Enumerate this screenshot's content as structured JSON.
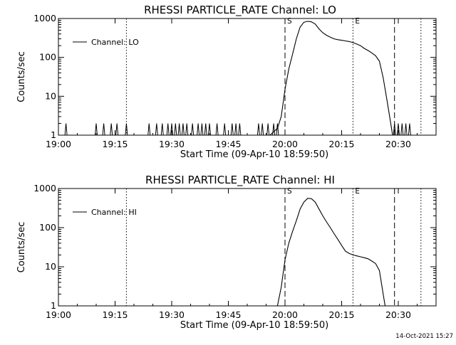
{
  "footer": {
    "timestamp": "14-Oct-2021 15:27"
  },
  "chart_data": [
    {
      "type": "line",
      "title": "RHESSI PARTICLE_RATE Channel: LO",
      "xlabel": "Start Time (09-Apr-10 18:59:50)",
      "ylabel": "Counts/sec",
      "yscale": "log",
      "xlim": [
        "19:00",
        "20:40"
      ],
      "ylim": [
        1,
        1000
      ],
      "x_ticks": [
        "19:00",
        "19:15",
        "19:30",
        "19:45",
        "20:00",
        "20:15",
        "20:30"
      ],
      "y_ticks": [
        "1",
        "10",
        "100",
        "1000"
      ],
      "legend_position": "top-left",
      "grid": false,
      "markers": [
        {
          "label": "S",
          "time": "20:00",
          "style": "dashed"
        },
        {
          "label": "E",
          "time": "20:18",
          "style": "dotted"
        }
      ],
      "vertical_lines": [
        {
          "time": "19:18",
          "style": "dotted"
        },
        {
          "time": "20:29",
          "style": "dashed"
        },
        {
          "time": "20:36",
          "style": "dotted"
        }
      ],
      "series": [
        {
          "name": "Channel: LO",
          "spike_times": [
            "19:02",
            "19:10",
            "19:12",
            "19:14",
            "19:15.5",
            "19:18",
            "19:24",
            "19:26",
            "19:27.5",
            "19:29",
            "19:30",
            "19:31",
            "19:32",
            "19:33",
            "19:34",
            "19:35.5",
            "19:37",
            "19:38",
            "19:39",
            "19:40",
            "19:42",
            "19:44",
            "19:46",
            "19:47",
            "19:48",
            "19:53",
            "19:54",
            "19:55.5",
            "19:57",
            "19:58"
          ],
          "points": [
            [
              "19:56",
              1
            ],
            [
              "19:58",
              1.5
            ],
            [
              "19:59",
              3
            ],
            [
              "20:00",
              15
            ],
            [
              "20:01",
              50
            ],
            [
              "20:02",
              120
            ],
            [
              "20:03",
              300
            ],
            [
              "20:04",
              600
            ],
            [
              "20:05",
              800
            ],
            [
              "20:06",
              850
            ],
            [
              "20:07",
              820
            ],
            [
              "20:08",
              720
            ],
            [
              "20:09",
              540
            ],
            [
              "20:10",
              430
            ],
            [
              "20:11",
              370
            ],
            [
              "20:12",
              330
            ],
            [
              "20:13",
              300
            ],
            [
              "20:14",
              285
            ],
            [
              "20:15",
              275
            ],
            [
              "20:16",
              265
            ],
            [
              "20:17",
              255
            ],
            [
              "20:18",
              240
            ],
            [
              "20:19",
              220
            ],
            [
              "20:20",
              200
            ],
            [
              "20:21",
              170
            ],
            [
              "20:22",
              150
            ],
            [
              "20:23",
              130
            ],
            [
              "20:24",
              110
            ],
            [
              "20:25",
              80
            ],
            [
              "20:26",
              30
            ],
            [
              "20:27",
              8
            ],
            [
              "20:28",
              2
            ],
            [
              "20:28.5",
              1
            ]
          ],
          "spikes_after": [
            "20:29",
            "20:30",
            "20:31",
            "20:32",
            "20:33"
          ]
        }
      ]
    },
    {
      "type": "line",
      "title": "RHESSI PARTICLE_RATE Channel: HI",
      "xlabel": "Start Time (09-Apr-10 18:59:50)",
      "ylabel": "Counts/sec",
      "yscale": "log",
      "xlim": [
        "19:00",
        "20:40"
      ],
      "ylim": [
        1,
        1000
      ],
      "x_ticks": [
        "19:00",
        "19:15",
        "19:30",
        "19:45",
        "20:00",
        "20:15",
        "20:30"
      ],
      "y_ticks": [
        "1",
        "10",
        "100",
        "1000"
      ],
      "legend_position": "top-left",
      "grid": false,
      "markers": [
        {
          "label": "S",
          "time": "20:00",
          "style": "dashed"
        },
        {
          "label": "E",
          "time": "20:18",
          "style": "dotted"
        }
      ],
      "vertical_lines": [
        {
          "time": "19:18",
          "style": "dotted"
        },
        {
          "time": "20:29",
          "style": "dashed"
        },
        {
          "time": "20:36",
          "style": "dotted"
        }
      ],
      "series": [
        {
          "name": "Channel: HI",
          "spike_times": [],
          "points": [
            [
              "19:58",
              1
            ],
            [
              "19:59",
              3
            ],
            [
              "20:00",
              15
            ],
            [
              "20:01",
              40
            ],
            [
              "20:02",
              80
            ],
            [
              "20:03",
              150
            ],
            [
              "20:04",
              300
            ],
            [
              "20:05",
              450
            ],
            [
              "20:06",
              560
            ],
            [
              "20:07",
              550
            ],
            [
              "20:08",
              450
            ],
            [
              "20:09",
              300
            ],
            [
              "20:10",
              200
            ],
            [
              "20:11",
              140
            ],
            [
              "20:12",
              100
            ],
            [
              "20:13",
              70
            ],
            [
              "20:14",
              50
            ],
            [
              "20:15",
              35
            ],
            [
              "20:16",
              25
            ],
            [
              "20:17",
              22
            ],
            [
              "20:18",
              20
            ],
            [
              "20:19",
              19
            ],
            [
              "20:20",
              18
            ],
            [
              "20:21",
              17
            ],
            [
              "20:22",
              16
            ],
            [
              "20:23",
              14
            ],
            [
              "20:24",
              12
            ],
            [
              "20:25",
              8
            ],
            [
              "20:26",
              2
            ],
            [
              "20:26.5",
              1
            ]
          ],
          "spikes_after": []
        }
      ]
    }
  ]
}
